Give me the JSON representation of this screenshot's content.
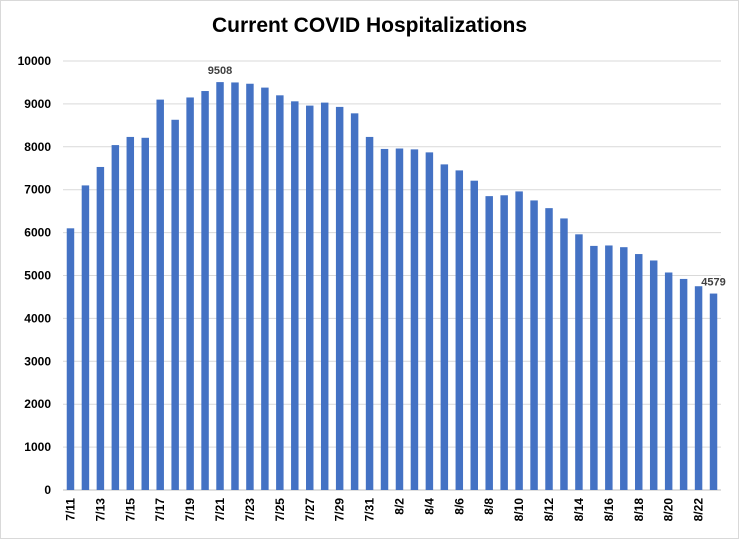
{
  "chart_data": {
    "type": "bar",
    "title": "Current COVID Hospitalizations",
    "xlabel": "",
    "ylabel": "",
    "ylim": [
      0,
      10000
    ],
    "yticks": [
      0,
      1000,
      2000,
      3000,
      4000,
      5000,
      6000,
      7000,
      8000,
      9000,
      10000
    ],
    "grid": true,
    "legend": "none",
    "bar_color": "#4472c4",
    "categories": [
      "7/11",
      "7/12",
      "7/13",
      "7/14",
      "7/15",
      "7/16",
      "7/17",
      "7/18",
      "7/19",
      "7/20",
      "7/21",
      "7/22",
      "7/23",
      "7/24",
      "7/25",
      "7/26",
      "7/27",
      "7/28",
      "7/29",
      "7/30",
      "7/31",
      "8/1",
      "8/2",
      "8/3",
      "8/4",
      "8/5",
      "8/6",
      "8/7",
      "8/8",
      "8/9",
      "8/10",
      "8/11",
      "8/12",
      "8/13",
      "8/14",
      "8/15",
      "8/16",
      "8/17",
      "8/18",
      "8/19",
      "8/20",
      "8/21",
      "8/22",
      "8/23"
    ],
    "x_tick_labels": [
      "7/11",
      "",
      "7/13",
      "",
      "7/15",
      "",
      "7/17",
      "",
      "7/19",
      "",
      "7/21",
      "",
      "7/23",
      "",
      "7/25",
      "",
      "7/27",
      "",
      "7/29",
      "",
      "7/31",
      "",
      "8/2",
      "",
      "8/4",
      "",
      "8/6",
      "",
      "8/8",
      "",
      "8/10",
      "",
      "8/12",
      "",
      "8/14",
      "",
      "8/16",
      "",
      "8/18",
      "",
      "8/20",
      "",
      "8/22",
      ""
    ],
    "values": [
      6100,
      7100,
      7530,
      8040,
      8230,
      8210,
      9100,
      8630,
      9150,
      9300,
      9508,
      9500,
      9470,
      9380,
      9200,
      9060,
      8960,
      9030,
      8930,
      8780,
      8230,
      7950,
      7960,
      7940,
      7870,
      7590,
      7450,
      7210,
      6850,
      6870,
      6960,
      6750,
      6570,
      6330,
      5960,
      5690,
      5700,
      5660,
      5500,
      5350,
      5070,
      4920,
      4750,
      4579
    ],
    "data_labels": [
      {
        "category": "7/21",
        "text": "9508"
      },
      {
        "category": "8/23",
        "text": "4579"
      }
    ]
  }
}
